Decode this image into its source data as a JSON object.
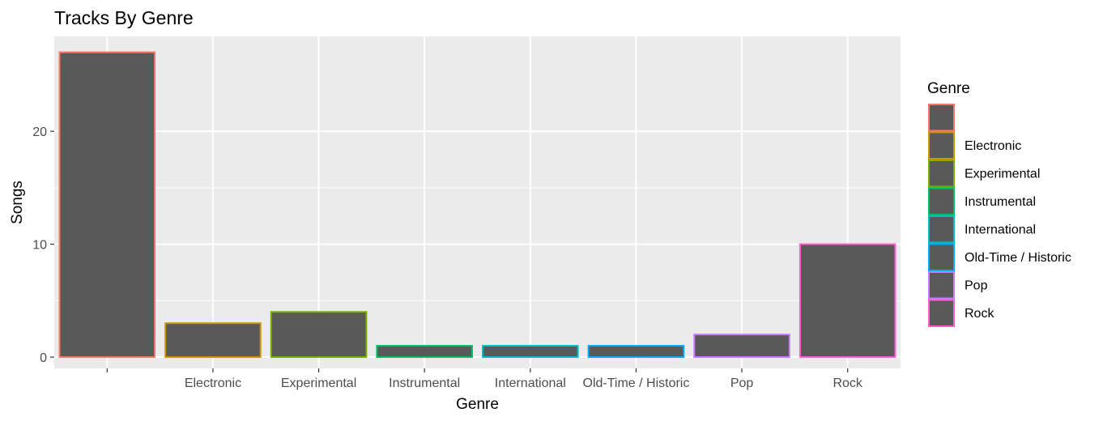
{
  "chart_data": {
    "type": "bar",
    "title": "Tracks By Genre",
    "xlabel": "Genre",
    "ylabel": "Songs",
    "categories": [
      "",
      "Electronic",
      "Experimental",
      "Instrumental",
      "International",
      "Old-Time / Historic",
      "Pop",
      "Rock"
    ],
    "values": [
      27,
      3,
      4,
      1,
      1,
      1,
      2,
      10
    ],
    "ylim": [
      -1,
      28.4
    ],
    "yticks": [
      0,
      10,
      20
    ],
    "ytick_labels": [
      "0",
      "10",
      "20"
    ],
    "bar_fill": "#595959",
    "outline_colors": [
      "#F8766D",
      "#CD9600",
      "#7CAE00",
      "#00BE67",
      "#00BFC4",
      "#00A9FF",
      "#C77CFF",
      "#FF61CC"
    ],
    "grid": true,
    "panel_background": "#EBEBEB",
    "legend": {
      "title": "Genre",
      "position": "right",
      "labels": [
        "",
        "Electronic",
        "Experimental",
        "Instrumental",
        "International",
        "Old-Time / Historic",
        "Pop",
        "Rock"
      ]
    }
  }
}
